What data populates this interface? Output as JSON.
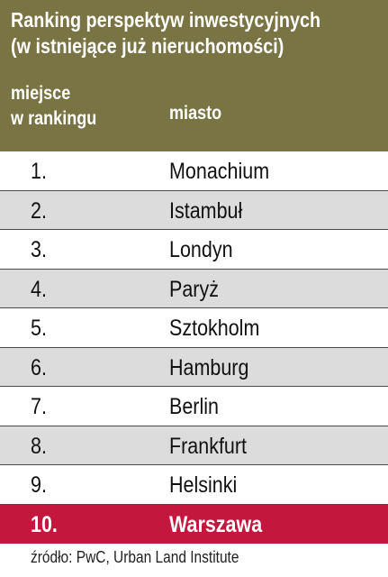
{
  "title": {
    "line1": "Ranking perspektyw inwestycyjnych",
    "line2": "(w istniejące już nieruchomości)"
  },
  "columns": {
    "rank_line1": "miejsce",
    "rank_line2": "w rankingu",
    "city": "miasto"
  },
  "rows": [
    {
      "rank": "1.",
      "city": "Monachium"
    },
    {
      "rank": "2.",
      "city": "Istambuł"
    },
    {
      "rank": "3.",
      "city": "Londyn"
    },
    {
      "rank": "4.",
      "city": "Paryż"
    },
    {
      "rank": "5.",
      "city": "Sztokholm"
    },
    {
      "rank": "6.",
      "city": "Hamburg"
    },
    {
      "rank": "7.",
      "city": "Berlin"
    },
    {
      "rank": "8.",
      "city": "Frankfurt"
    },
    {
      "rank": "9.",
      "city": "Helsinki"
    },
    {
      "rank": "10.",
      "city": "Warszawa"
    }
  ],
  "highlighted_row": 9,
  "colors": {
    "header_bg": "#7a7343",
    "alt_row_bg": "#dcdcdc",
    "highlight_bg": "#c3173d"
  },
  "source": "źródło: PwC, Urban Land Institute"
}
